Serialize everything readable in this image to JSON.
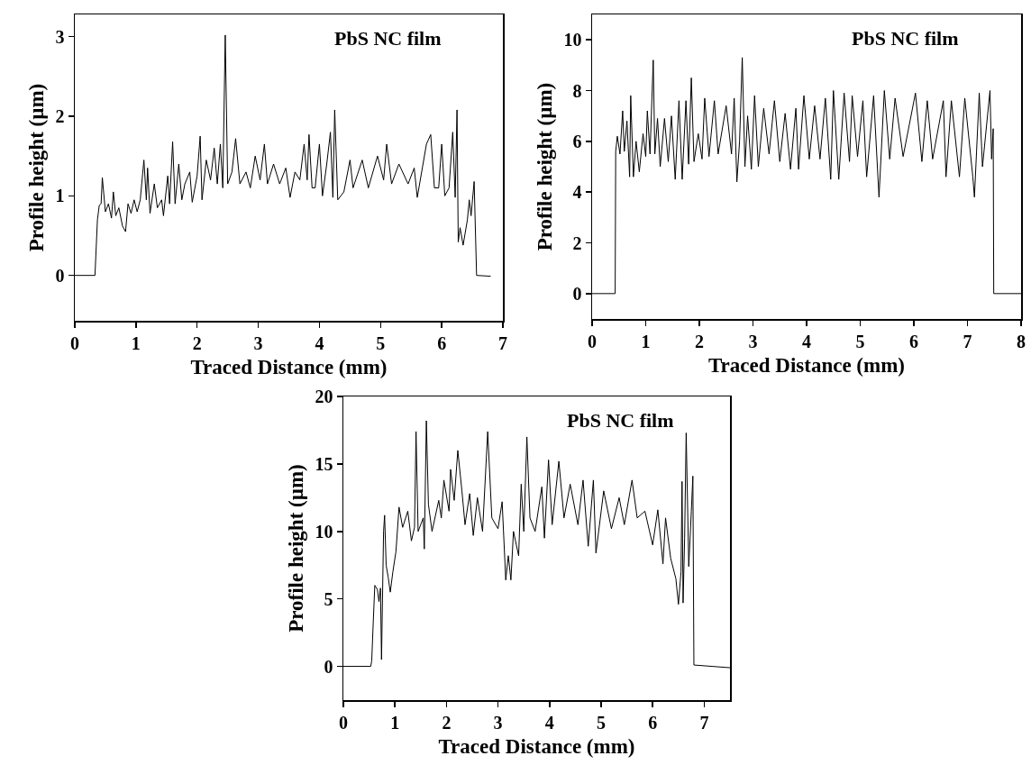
{
  "chart_data": [
    {
      "type": "line",
      "xlabel": "Traced Distance (mm)",
      "ylabel": "Profile height (µm)",
      "annotations": [
        "PbS NC film"
      ],
      "xlim": [
        0,
        7
      ],
      "ylim": [
        -0.57,
        3.28
      ],
      "xticks": [
        0,
        1,
        2,
        3,
        4,
        5,
        6,
        7
      ],
      "yticks": [
        0,
        1,
        2,
        3
      ],
      "x": [
        0,
        0.33,
        0.37,
        0.4,
        0.43,
        0.45,
        0.5,
        0.55,
        0.6,
        0.63,
        0.67,
        0.72,
        0.78,
        0.83,
        0.87,
        0.92,
        0.97,
        1.02,
        1.07,
        1.13,
        1.17,
        1.19,
        1.23,
        1.3,
        1.35,
        1.42,
        1.45,
        1.52,
        1.55,
        1.6,
        1.64,
        1.7,
        1.75,
        1.8,
        1.88,
        1.92,
        2.0,
        2.05,
        2.08,
        2.15,
        2.22,
        2.28,
        2.33,
        2.38,
        2.42,
        2.46,
        2.5,
        2.57,
        2.63,
        2.7,
        2.8,
        2.87,
        2.95,
        3.03,
        3.1,
        3.15,
        3.25,
        3.35,
        3.45,
        3.52,
        3.6,
        3.68,
        3.75,
        3.8,
        3.83,
        3.88,
        3.93,
        4.0,
        4.05,
        4.12,
        4.18,
        4.22,
        4.25,
        4.3,
        4.4,
        4.5,
        4.55,
        4.7,
        4.8,
        4.95,
        5.05,
        5.1,
        5.18,
        5.3,
        5.45,
        5.55,
        5.6,
        5.75,
        5.82,
        5.88,
        5.95,
        6.0,
        6.05,
        6.12,
        6.18,
        6.22,
        6.25,
        6.27,
        6.3,
        6.35,
        6.42,
        6.45,
        6.48,
        6.53,
        6.57,
        6.8
      ],
      "series": [
        {
          "color": "#000000",
          "values": [
            0,
            0,
            0.7,
            0.88,
            0.9,
            1.23,
            0.8,
            0.9,
            0.72,
            1.05,
            0.75,
            0.85,
            0.62,
            0.55,
            0.9,
            0.78,
            0.95,
            0.8,
            0.95,
            1.45,
            0.95,
            1.35,
            0.78,
            1.15,
            0.85,
            0.95,
            0.75,
            1.25,
            0.9,
            1.68,
            0.9,
            1.4,
            0.95,
            1.15,
            1.3,
            0.92,
            1.25,
            1.75,
            0.95,
            1.45,
            1.2,
            1.6,
            1.15,
            1.65,
            1.1,
            3.02,
            1.15,
            1.3,
            1.72,
            1.15,
            1.3,
            1.1,
            1.5,
            1.2,
            1.65,
            1.15,
            1.4,
            1.15,
            1.35,
            0.98,
            1.3,
            1.2,
            1.65,
            1.2,
            1.77,
            1.1,
            1.1,
            1.65,
            1.0,
            1.4,
            1.8,
            0.98,
            2.08,
            0.95,
            1.05,
            1.45,
            1.1,
            1.45,
            1.1,
            1.5,
            1.2,
            1.65,
            1.15,
            1.4,
            1.15,
            1.35,
            0.98,
            1.65,
            1.77,
            1.1,
            1.1,
            1.65,
            1.0,
            1.1,
            1.8,
            0.98,
            2.08,
            0.42,
            0.6,
            0.38,
            0.7,
            0.95,
            0.75,
            1.18,
            0.0,
            -0.01
          ]
        }
      ]
    },
    {
      "type": "line",
      "xlabel": "Traced Distance (mm)",
      "ylabel": "Profile height (µm)",
      "annotations": [
        "PbS NC film"
      ],
      "xlim": [
        0,
        8
      ],
      "ylim": [
        -1,
        11
      ],
      "xticks": [
        0,
        1,
        2,
        3,
        4,
        5,
        6,
        7,
        8
      ],
      "yticks": [
        0,
        2,
        4,
        6,
        8,
        10
      ],
      "x": [
        0,
        0.43,
        0.44,
        0.47,
        0.52,
        0.57,
        0.6,
        0.65,
        0.7,
        0.72,
        0.77,
        0.82,
        0.88,
        0.95,
        1.0,
        1.03,
        1.08,
        1.14,
        1.17,
        1.22,
        1.27,
        1.35,
        1.42,
        1.48,
        1.55,
        1.62,
        1.68,
        1.75,
        1.8,
        1.85,
        1.9,
        1.98,
        2.05,
        2.1,
        2.18,
        2.28,
        2.35,
        2.5,
        2.6,
        2.65,
        2.7,
        2.75,
        2.8,
        2.85,
        2.9,
        2.97,
        3.03,
        3.1,
        3.2,
        3.3,
        3.4,
        3.5,
        3.6,
        3.7,
        3.8,
        3.85,
        3.95,
        4.05,
        4.15,
        4.25,
        4.35,
        4.45,
        4.5,
        4.6,
        4.7,
        4.8,
        4.85,
        4.95,
        5.05,
        5.12,
        5.25,
        5.35,
        5.45,
        5.55,
        5.65,
        5.8,
        6.03,
        6.15,
        6.25,
        6.35,
        6.55,
        6.6,
        6.7,
        6.85,
        6.95,
        7.1,
        7.13,
        7.22,
        7.28,
        7.42,
        7.45,
        7.48,
        7.49,
        8
      ],
      "series": [
        {
          "color": "#000000",
          "values": [
            0,
            0,
            5.6,
            6.2,
            5.5,
            7.2,
            5.6,
            6.8,
            4.6,
            7.8,
            4.6,
            6.0,
            4.8,
            6.3,
            5.4,
            7.2,
            5.5,
            9.2,
            5.5,
            6.9,
            5.0,
            6.9,
            5.2,
            7.0,
            4.5,
            7.6,
            4.5,
            7.6,
            5.1,
            8.5,
            5.2,
            6.3,
            5.3,
            7.7,
            5.4,
            7.6,
            5.5,
            7.4,
            5.5,
            7.7,
            4.4,
            6.0,
            9.3,
            5.0,
            7.0,
            4.9,
            7.8,
            5.0,
            7.3,
            5.5,
            7.6,
            5.2,
            7.1,
            4.9,
            7.3,
            4.9,
            7.8,
            5.3,
            7.4,
            5.3,
            7.7,
            4.5,
            8.0,
            4.5,
            7.9,
            5.2,
            7.8,
            5.4,
            7.6,
            4.6,
            7.8,
            3.8,
            8.0,
            5.3,
            7.7,
            5.4,
            7.9,
            5.2,
            7.6,
            5.3,
            7.6,
            4.6,
            7.6,
            4.6,
            7.7,
            4.6,
            3.8,
            7.9,
            5.0,
            8.0,
            5.3,
            6.5,
            0,
            0
          ]
        }
      ]
    },
    {
      "type": "line",
      "xlabel": "Traced Distance (mm)",
      "ylabel": "Profile height (µm)",
      "annotations": [
        "PbS NC film"
      ],
      "xlim": [
        0,
        7.5
      ],
      "ylim": [
        -2.5,
        20
      ],
      "xticks": [
        0,
        1,
        2,
        3,
        4,
        5,
        6,
        7
      ],
      "yticks": [
        0,
        5,
        10,
        15,
        20
      ],
      "x": [
        0,
        0.53,
        0.55,
        0.58,
        0.61,
        0.66,
        0.69,
        0.72,
        0.74,
        0.78,
        0.8,
        0.83,
        0.87,
        0.91,
        0.96,
        1.02,
        1.08,
        1.15,
        1.25,
        1.32,
        1.38,
        1.41,
        1.45,
        1.55,
        1.57,
        1.61,
        1.65,
        1.72,
        1.85,
        1.9,
        1.95,
        2.05,
        2.08,
        2.15,
        2.22,
        2.3,
        2.36,
        2.45,
        2.52,
        2.6,
        2.7,
        2.8,
        2.88,
        3.0,
        3.08,
        3.15,
        3.2,
        3.25,
        3.3,
        3.4,
        3.45,
        3.5,
        3.56,
        3.62,
        3.72,
        3.85,
        3.9,
        3.98,
        4.05,
        4.18,
        4.28,
        4.4,
        4.55,
        4.65,
        4.75,
        4.85,
        4.9,
        5.05,
        5.2,
        5.35,
        5.45,
        5.6,
        5.7,
        5.85,
        6.0,
        6.1,
        6.2,
        6.25,
        6.35,
        6.45,
        6.5,
        6.55,
        6.57,
        6.59,
        6.62,
        6.65,
        6.7,
        6.75,
        6.78,
        6.8,
        7.5
      ],
      "series": [
        {
          "color": "#000000",
          "values": [
            0,
            0,
            0.4,
            3.3,
            6.0,
            5.7,
            4.8,
            5.8,
            0.5,
            10.0,
            11.2,
            7.5,
            6.6,
            5.5,
            7.0,
            8.5,
            11.8,
            10.3,
            11.5,
            9.3,
            10.3,
            17.4,
            10.0,
            11.0,
            8.7,
            18.2,
            12.0,
            10.0,
            12.3,
            11.0,
            13.8,
            11.5,
            14.6,
            12.3,
            16.0,
            13.0,
            10.5,
            12.8,
            9.7,
            12.5,
            10.0,
            17.4,
            11.0,
            10.2,
            12.2,
            6.4,
            8.2,
            6.4,
            10.0,
            8.2,
            13.5,
            10.0,
            17.0,
            11.0,
            10.0,
            13.3,
            9.5,
            15.3,
            10.5,
            15.2,
            11.0,
            13.5,
            10.5,
            13.8,
            8.9,
            13.8,
            8.4,
            13.0,
            10.2,
            12.5,
            10.5,
            13.8,
            11.0,
            11.5,
            9.0,
            11.6,
            7.6,
            11.0,
            8.0,
            6.5,
            4.6,
            7.0,
            13.7,
            4.7,
            9.5,
            17.3,
            7.4,
            11.5,
            14.1,
            0.1,
            -0.1
          ]
        }
      ]
    }
  ]
}
